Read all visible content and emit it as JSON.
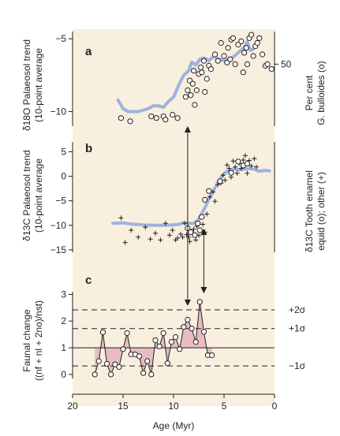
{
  "colors": {
    "background": "#f8efdf",
    "trend": "#9db3dd",
    "faunal_fill": "#e7bcc2",
    "ink": "#231f20"
  },
  "chart_data": [
    {
      "panel": "a",
      "type": "scatter",
      "x_axis": {
        "label": "Age (Myr)",
        "range": [
          20,
          0
        ],
        "reversed": true,
        "ticks": [
          20,
          15,
          10,
          5,
          0
        ]
      },
      "left_axis": {
        "label_line1": "δ18O Palaeosol trend",
        "label_line2": "(10-point average",
        "ticks": [
          -10,
          -5
        ],
        "range": [
          -11,
          -4.5
        ]
      },
      "right_axis": {
        "label_line1": "Per cent",
        "label_line2": "G. bulloides (o)",
        "ticks": [
          50
        ],
        "range": [
          12,
          70
        ]
      },
      "series": [
        {
          "kind": "trend-line",
          "axis": "left",
          "x": [
            15.5,
            15.0,
            14.5,
            14.0,
            13.5,
            13.0,
            12.5,
            12.0,
            11.5,
            11.0,
            10.5,
            10.0,
            9.5,
            9.0,
            8.5,
            8.2,
            7.8,
            7.4,
            7.0,
            6.5,
            6.0,
            5.5,
            5.0,
            4.5,
            4.0,
            3.5,
            3.0,
            2.7,
            2.4,
            2.1,
            1.8
          ],
          "y": [
            -9.2,
            -9.8,
            -10.0,
            -10.0,
            -10.0,
            -9.9,
            -9.8,
            -9.6,
            -9.6,
            -9.7,
            -9.3,
            -9.0,
            -8.2,
            -7.5,
            -7.2,
            -6.6,
            -6.8,
            -6.4,
            -6.3,
            -6.5,
            -6.2,
            -6.4,
            -6.5,
            -6.4,
            -6.2,
            -5.9,
            -5.6,
            -5.2,
            -5.8,
            -5.7,
            -5.3
          ]
        },
        {
          "kind": "points",
          "marker": "circle",
          "axis": "right",
          "x": [
            15.2,
            14.3,
            12.2,
            11.7,
            11.0,
            10.8,
            10.1,
            9.6,
            8.8,
            8.6,
            8.4,
            8.3,
            8.1,
            8.0,
            7.9,
            7.7,
            7.5,
            7.3,
            7.2,
            7.0,
            6.9,
            6.7,
            6.5,
            6.3,
            5.9,
            5.6,
            5.3,
            5.0,
            4.7,
            4.6,
            4.4,
            4.3,
            4.1,
            3.9,
            3.6,
            3.3,
            3.1,
            3.0,
            2.8,
            2.7,
            2.5,
            2.3,
            2.1,
            1.9,
            1.7,
            1.5,
            1.2,
            0.9,
            0.7,
            0.3
          ],
          "y": [
            17,
            15,
            18,
            17,
            18,
            16,
            19,
            17,
            30,
            34,
            40,
            31,
            38,
            46,
            25,
            34,
            44,
            48,
            45,
            52,
            33,
            41,
            49,
            47,
            56,
            52,
            63,
            55,
            51,
            60,
            53,
            65,
            66,
            50,
            62,
            64,
            45,
            57,
            60,
            50,
            66,
            68,
            55,
            61,
            63,
            66,
            56,
            49,
            50,
            47
          ]
        }
      ]
    },
    {
      "panel": "b",
      "type": "scatter",
      "x_axis": {
        "label": "Age (Myr)",
        "range": [
          20,
          0
        ],
        "reversed": true,
        "ticks": [
          20,
          15,
          10,
          5,
          0
        ]
      },
      "left_axis": {
        "label_line1": "δ13C Palaeosol trend",
        "label_line2": "(10-point average",
        "ticks": [
          -15,
          -10,
          -5,
          0,
          5
        ],
        "range": [
          -15.5,
          7
        ]
      },
      "right_axis": {
        "label_line1": "δ13C Tooth enamel",
        "label_line2": "equid (o); other (+)",
        "ticks": [],
        "range": [
          -15.5,
          7
        ]
      },
      "series": [
        {
          "kind": "trend-line",
          "x": [
            16.0,
            15.0,
            14.0,
            13.0,
            12.0,
            11.0,
            10.0,
            9.5,
            9.0,
            8.5,
            8.0,
            7.6,
            7.2,
            6.8,
            6.4,
            6.0,
            5.6,
            5.2,
            4.8,
            4.4,
            4.0,
            3.5,
            3.0,
            2.5,
            2.0,
            1.5,
            1.0,
            0.5
          ],
          "y": [
            -9.6,
            -9.5,
            -9.8,
            -9.9,
            -10.0,
            -10.0,
            -9.9,
            -9.8,
            -9.5,
            -9.6,
            -9.6,
            -9.0,
            -7.6,
            -6.0,
            -4.2,
            -2.8,
            -1.2,
            0.0,
            0.9,
            1.2,
            1.5,
            1.3,
            1.5,
            1.6,
            1.4,
            1.0,
            1.2,
            1.1
          ]
        },
        {
          "kind": "points",
          "marker": "circle",
          "name": "equid",
          "x": [
            8.6,
            8.3,
            7.9,
            7.6,
            7.4,
            7.2,
            6.9,
            6.5,
            5.4,
            4.3,
            3.6,
            3.1,
            2.7
          ],
          "y": [
            -10.6,
            -11.4,
            -12.0,
            -9.6,
            -11.0,
            -8.3,
            -4.8,
            -3.0,
            -1.0,
            0.7,
            3.0,
            2.2,
            2.6
          ]
        },
        {
          "kind": "points",
          "marker": "plus",
          "name": "other",
          "x": [
            15.2,
            14.8,
            14.2,
            13.5,
            12.8,
            12.3,
            11.8,
            11.3,
            10.8,
            10.4,
            10.1,
            9.8,
            9.6,
            9.3,
            9.1,
            8.9,
            8.7,
            8.5,
            8.4,
            8.2,
            8.0,
            7.8,
            7.7,
            7.5,
            7.3,
            7.1,
            6.9,
            6.7,
            6.4,
            6.1,
            5.9,
            5.6,
            5.3,
            5.1,
            4.9,
            4.7,
            4.5,
            4.3,
            4.1,
            3.9,
            3.7,
            3.5,
            3.3,
            3.1,
            2.9,
            2.7,
            2.5,
            2.3,
            2.0,
            1.8
          ],
          "y": [
            -8.5,
            -13.5,
            -11.0,
            -12.4,
            -10.4,
            -12.8,
            -11.6,
            -13.0,
            -9.6,
            -12.0,
            -11.0,
            -13.0,
            -12.6,
            -11.8,
            -12.4,
            -9.6,
            -11.9,
            -12.4,
            -13.3,
            -11.2,
            -10.8,
            -13.0,
            -10.2,
            -12.1,
            -11.1,
            -9.8,
            -11.4,
            -7.7,
            -4.2,
            -3.2,
            -5.1,
            -1.7,
            -1.4,
            0.2,
            -0.8,
            2.3,
            1.6,
            -0.2,
            3.1,
            1.9,
            0.6,
            2.6,
            1.6,
            3.3,
            4.2,
            0.6,
            3.2,
            2.1,
            3.6,
            1.9
          ]
        }
      ]
    },
    {
      "panel": "c",
      "type": "line",
      "x_axis": {
        "label": "Age (Myr)",
        "range": [
          20,
          0
        ],
        "reversed": true,
        "ticks": [
          20,
          15,
          10,
          5,
          0
        ]
      },
      "left_axis": {
        "label_line1": "Faunal change",
        "label_line2": "((nf + nl + 2no)/nst)",
        "ticks": [
          0,
          1,
          2,
          3
        ],
        "range": [
          -0.15,
          3.1
        ]
      },
      "baseline": 1,
      "reference_lines": [
        {
          "label": "+2σ",
          "y": 2.42
        },
        {
          "label": "+1σ",
          "y": 1.72
        },
        {
          "label": "−1σ",
          "y": 0.32
        }
      ],
      "series": [
        {
          "kind": "line-with-points",
          "marker": "circle",
          "x": [
            17.8,
            17.4,
            17.0,
            16.6,
            16.2,
            15.8,
            15.4,
            15.0,
            14.6,
            14.2,
            13.8,
            13.4,
            13.0,
            12.6,
            12.2,
            11.8,
            11.4,
            11.0,
            10.6,
            10.2,
            9.8,
            9.4,
            9.0,
            8.6,
            8.2,
            7.8,
            7.4,
            7.0,
            6.6,
            6.2
          ],
          "y": [
            0.0,
            0.5,
            1.58,
            0.4,
            0.0,
            0.38,
            0.28,
            0.95,
            1.55,
            0.75,
            0.75,
            0.68,
            0.05,
            0.5,
            0.0,
            1.28,
            1.05,
            1.55,
            0.42,
            1.22,
            1.4,
            0.95,
            1.78,
            2.05,
            1.72,
            1.22,
            2.72,
            1.6,
            0.72,
            0.72
          ]
        }
      ]
    }
  ],
  "labels": {
    "panel_a": "a",
    "panel_b": "b",
    "panel_c": "c",
    "a_left_1": "δ18O Palaeosol trend",
    "a_left_2": "(10-point average",
    "a_right_1": "Per cent",
    "a_right_2": "G. bulloides (o)",
    "b_left_1": "δ13C Palaeosol trend",
    "b_left_2": "(10-point average",
    "b_right_1": "δ13C Tooth enamel",
    "b_right_2": "equid (o); other (+)",
    "c_left_1": "Faunal change",
    "c_left_2": "((nf + nl + 2no)/nst)",
    "x_label": "Age (Myr)"
  },
  "arrows": [
    {
      "x": 8.6,
      "from": "panel a",
      "to": "panel c"
    },
    {
      "x": 7.0,
      "from": "panel b",
      "to": "panel c"
    }
  ]
}
